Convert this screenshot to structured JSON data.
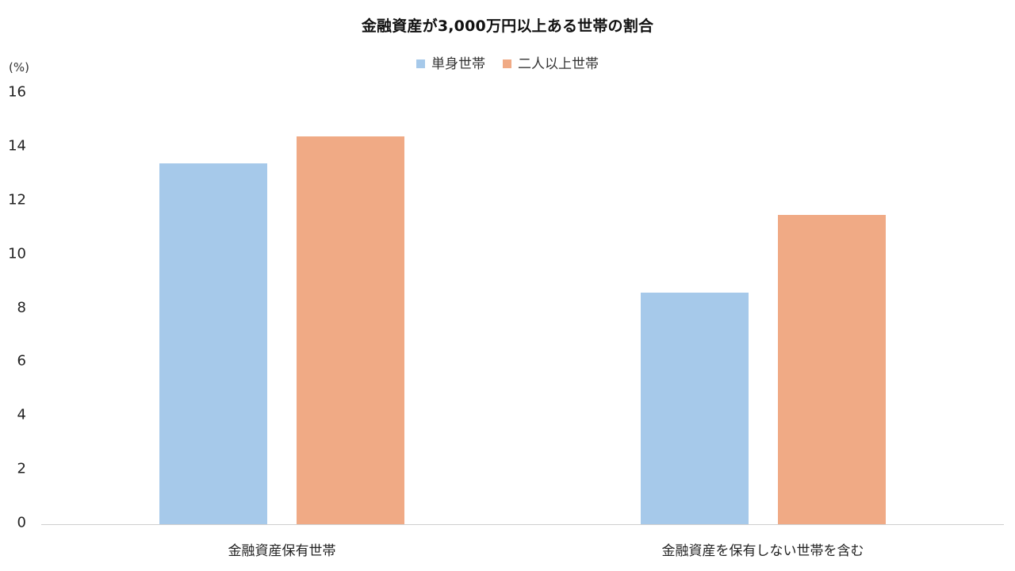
{
  "chart_data": {
    "type": "bar",
    "title": "金融資産が3,000万円以上ある世帯の割合",
    "xlabel": "",
    "ylabel": "(%)",
    "ylim": [
      0,
      16
    ],
    "yticks": [
      0,
      2,
      4,
      6,
      8,
      10,
      12,
      14,
      16
    ],
    "grid": false,
    "legend_position": "top",
    "categories": [
      "金融資産保有世帯",
      "金融資産を保有しない世帯を含む"
    ],
    "series": [
      {
        "name": "単身世帯",
        "color": "#A6C9EA",
        "values": [
          13.4,
          8.6
        ]
      },
      {
        "name": "二人以上世帯",
        "color": "#F0AA85",
        "values": [
          14.4,
          11.5
        ]
      }
    ]
  },
  "colors": {
    "single": "#A6C9EA",
    "multi": "#F0AA85",
    "axis": "#CFCFCF"
  }
}
